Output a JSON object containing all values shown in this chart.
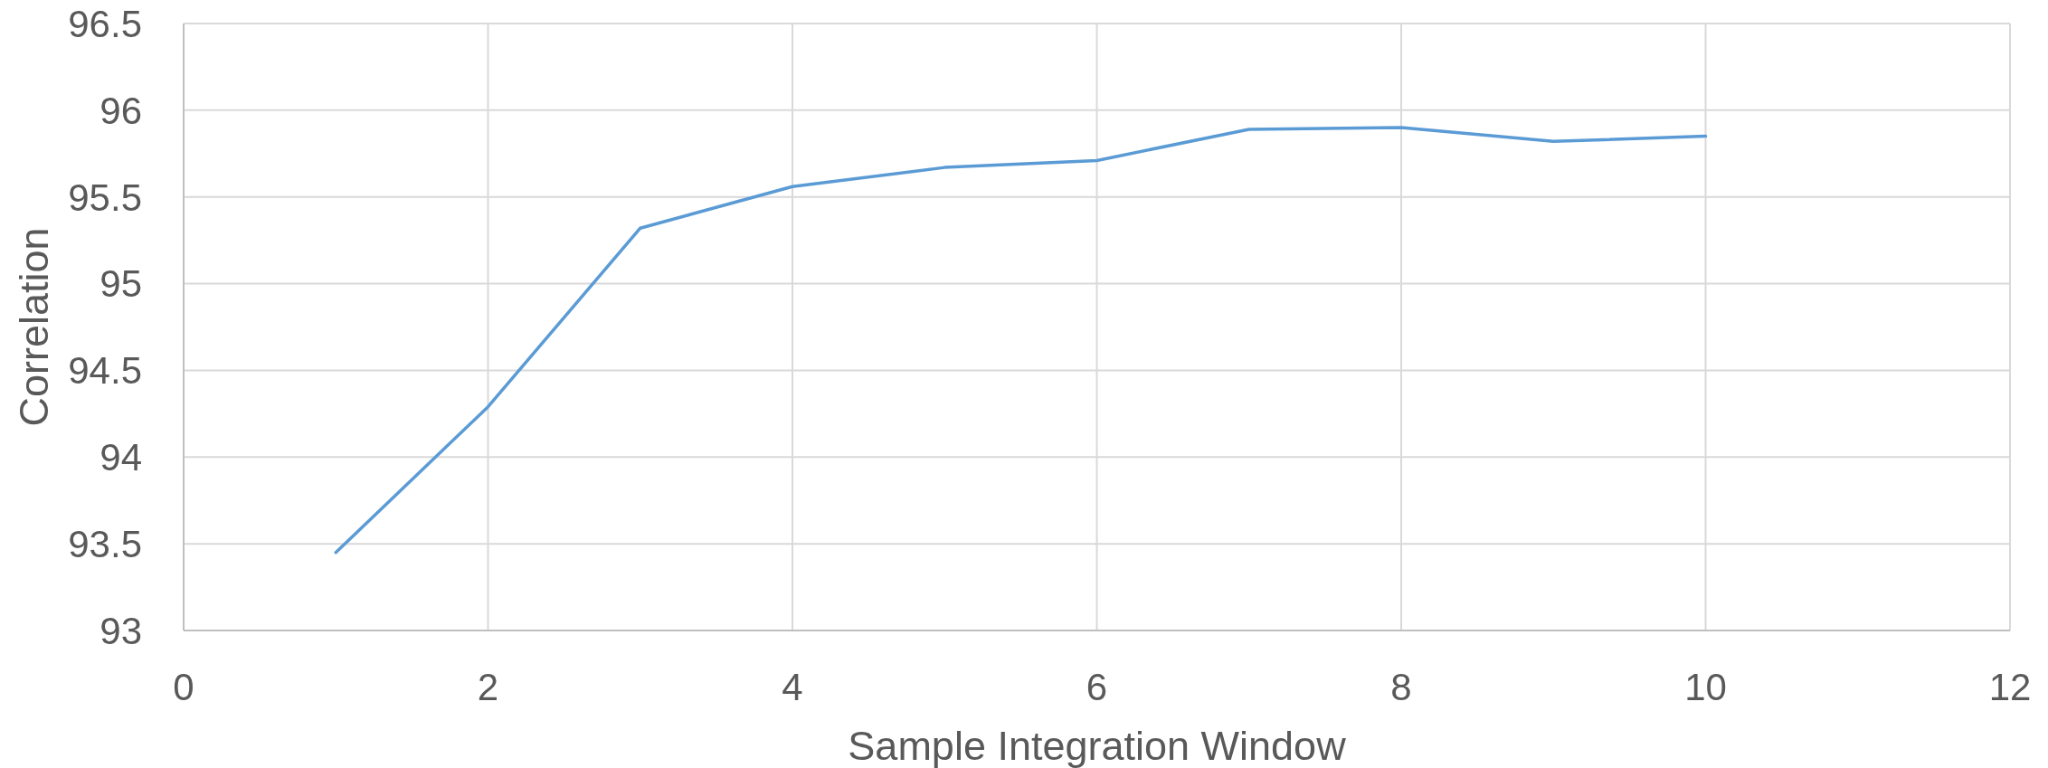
{
  "chart_data": {
    "type": "line",
    "xlabel": "Sample Integration Window",
    "ylabel": "Correlation",
    "x": [
      1,
      2,
      3,
      4,
      5,
      6,
      7,
      8,
      9,
      10
    ],
    "series": [
      {
        "color": "#5b9bd5",
        "values": [
          93.45,
          94.29,
          95.32,
          95.56,
          95.67,
          95.71,
          95.89,
          95.9,
          95.82,
          95.85
        ]
      }
    ],
    "xlim": [
      0,
      12
    ],
    "xticks": [
      0,
      2,
      4,
      6,
      8,
      10,
      12
    ],
    "ylim": [
      93,
      96.5
    ],
    "yticks": [
      93,
      93.5,
      94,
      94.5,
      95,
      95.5,
      96,
      96.5
    ],
    "grid": true,
    "marker": "none",
    "line_style": "solid"
  }
}
